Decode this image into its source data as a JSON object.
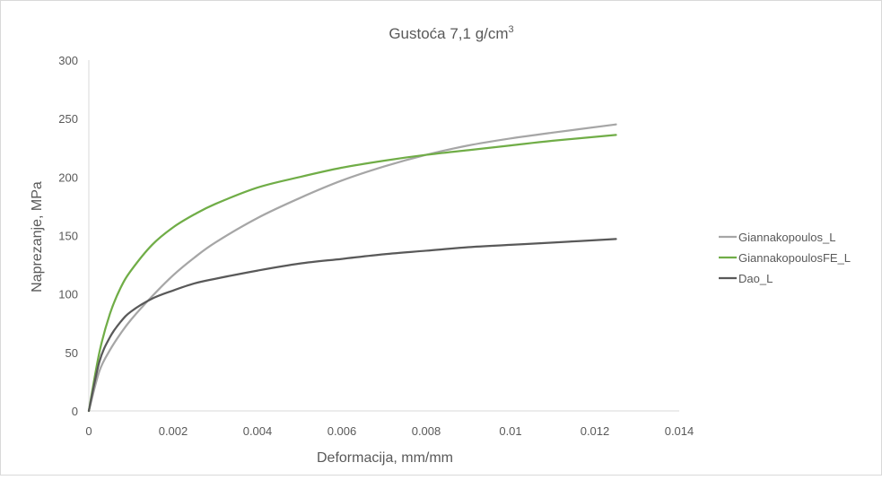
{
  "chart_data": {
    "type": "line",
    "title": "Gustoća 7,1 g/cm",
    "title_superscript": "3",
    "xlabel": "Deformacija, mm/mm",
    "ylabel": "Naprezanje, MPa",
    "xlim": [
      0,
      0.014
    ],
    "ylim": [
      0,
      300
    ],
    "x_ticks": [
      0,
      0.002,
      0.004,
      0.006,
      0.008,
      0.01,
      0.012,
      0.014
    ],
    "x_tick_labels": [
      "0",
      "0.002",
      "0.004",
      "0.006",
      "0.008",
      "0.01",
      "0.012",
      "0.014"
    ],
    "y_ticks": [
      0,
      50,
      100,
      150,
      200,
      250,
      300
    ],
    "y_tick_labels": [
      "0",
      "50",
      "100",
      "150",
      "200",
      "250",
      "300"
    ],
    "grid": false,
    "legend_position": "right",
    "series": [
      {
        "name": "Giannakopoulos_L",
        "color": "#a6a6a6",
        "x": [
          0,
          0.00025,
          0.0005,
          0.00075,
          0.001,
          0.0015,
          0.002,
          0.0025,
          0.003,
          0.004,
          0.005,
          0.006,
          0.007,
          0.008,
          0.009,
          0.01,
          0.011,
          0.0125
        ],
        "y": [
          0,
          34,
          52,
          66,
          78,
          98,
          116,
          131,
          144,
          165,
          182,
          197,
          209,
          219,
          227,
          233,
          238,
          245
        ]
      },
      {
        "name": "GiannakopoulosFE_L",
        "color": "#70ad47",
        "x": [
          0,
          0.00025,
          0.0005,
          0.00075,
          0.001,
          0.0015,
          0.002,
          0.0025,
          0.003,
          0.004,
          0.005,
          0.006,
          0.007,
          0.008,
          0.009,
          0.01,
          0.011,
          0.0125
        ],
        "y": [
          0,
          50,
          83,
          105,
          120,
          142,
          157,
          168,
          177,
          191,
          200,
          208,
          214,
          219,
          223,
          227,
          231,
          236
        ]
      },
      {
        "name": "Dao_L",
        "color": "#595959",
        "x": [
          0,
          0.00025,
          0.0005,
          0.00075,
          0.001,
          0.0015,
          0.002,
          0.0025,
          0.003,
          0.004,
          0.005,
          0.006,
          0.007,
          0.008,
          0.009,
          0.01,
          0.011,
          0.0125
        ],
        "y": [
          0,
          42,
          63,
          76,
          85,
          96,
          103,
          109,
          113,
          120,
          126,
          130,
          134,
          137,
          140,
          142,
          144,
          147
        ]
      }
    ]
  }
}
